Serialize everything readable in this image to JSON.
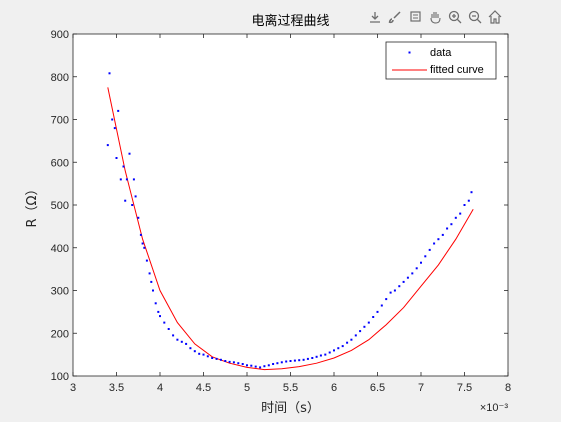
{
  "axes_toolbar": {
    "icons": [
      "export-icon",
      "brush-icon",
      "data-tips-icon",
      "pan-icon",
      "zoom-in-icon",
      "zoom-out-icon",
      "home-icon"
    ]
  },
  "chart_data": {
    "type": "scatter",
    "title": "电离过程曲线",
    "xlabel": "时间（s）",
    "ylabel": "R（Ω）",
    "x_exponent_label": "×10⁻³",
    "xlim": [
      3,
      8
    ],
    "ylim": [
      100,
      900
    ],
    "xticks": [
      3,
      3.5,
      4,
      4.5,
      5,
      5.5,
      6,
      6.5,
      7,
      7.5,
      8
    ],
    "xtick_labels": [
      "3",
      "3.5",
      "4",
      "4.5",
      "5",
      "5.5",
      "6",
      "6.5",
      "7",
      "7.5",
      "8"
    ],
    "yticks": [
      100,
      200,
      300,
      400,
      500,
      600,
      700,
      800,
      900
    ],
    "ytick_labels": [
      "100",
      "200",
      "300",
      "400",
      "500",
      "600",
      "700",
      "800",
      "900"
    ],
    "grid": false,
    "legend": {
      "position": "top-right",
      "entries": [
        "data",
        "fitted curve"
      ]
    },
    "colors": {
      "data": "#0000ff",
      "fit": "#ff0000"
    },
    "series": [
      {
        "name": "data",
        "style": "points",
        "x": [
          3.4,
          3.42,
          3.45,
          3.48,
          3.5,
          3.52,
          3.55,
          3.58,
          3.6,
          3.62,
          3.65,
          3.68,
          3.7,
          3.72,
          3.75,
          3.78,
          3.8,
          3.82,
          3.85,
          3.88,
          3.9,
          3.92,
          3.95,
          3.98,
          4.0,
          4.05,
          4.1,
          4.15,
          4.2,
          4.25,
          4.3,
          4.35,
          4.4,
          4.45,
          4.5,
          4.55,
          4.6,
          4.65,
          4.7,
          4.75,
          4.8,
          4.85,
          4.9,
          4.95,
          5.0,
          5.05,
          5.1,
          5.15,
          5.2,
          5.25,
          5.3,
          5.35,
          5.4,
          5.45,
          5.5,
          5.55,
          5.6,
          5.65,
          5.7,
          5.75,
          5.8,
          5.85,
          5.9,
          5.95,
          6.0,
          6.05,
          6.1,
          6.15,
          6.2,
          6.25,
          6.3,
          6.35,
          6.4,
          6.45,
          6.5,
          6.55,
          6.6,
          6.65,
          6.7,
          6.75,
          6.8,
          6.85,
          6.9,
          6.95,
          7.0,
          7.05,
          7.1,
          7.15,
          7.2,
          7.25,
          7.3,
          7.35,
          7.4,
          7.45,
          7.5,
          7.55,
          7.58
        ],
        "y": [
          640,
          808,
          700,
          680,
          610,
          720,
          560,
          590,
          510,
          560,
          620,
          500,
          560,
          520,
          470,
          430,
          410,
          400,
          370,
          340,
          320,
          300,
          270,
          250,
          240,
          225,
          210,
          195,
          185,
          180,
          175,
          165,
          158,
          152,
          150,
          146,
          142,
          140,
          138,
          135,
          133,
          132,
          130,
          128,
          125,
          124,
          122,
          120,
          123,
          125,
          128,
          130,
          132,
          134,
          135,
          136,
          137,
          138,
          140,
          142,
          145,
          148,
          150,
          155,
          160,
          165,
          170,
          178,
          185,
          195,
          205,
          215,
          225,
          238,
          250,
          265,
          280,
          295,
          300,
          310,
          320,
          330,
          340,
          352,
          365,
          380,
          395,
          410,
          420,
          430,
          445,
          455,
          470,
          480,
          500,
          510,
          530
        ]
      },
      {
        "name": "fitted curve",
        "style": "line",
        "x": [
          3.4,
          3.6,
          3.8,
          4.0,
          4.2,
          4.4,
          4.6,
          4.8,
          5.0,
          5.2,
          5.4,
          5.6,
          5.8,
          6.0,
          6.2,
          6.4,
          6.6,
          6.8,
          7.0,
          7.2,
          7.4,
          7.6
        ],
        "y": [
          775,
          580,
          420,
          300,
          225,
          175,
          145,
          130,
          120,
          115,
          117,
          122,
          130,
          142,
          160,
          185,
          220,
          260,
          310,
          360,
          420,
          490
        ]
      }
    ]
  }
}
